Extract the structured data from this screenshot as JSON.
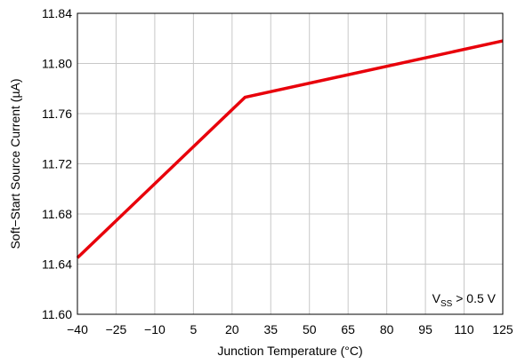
{
  "chart_data": {
    "type": "line",
    "title": "",
    "xlabel": "Junction Temperature (°C)",
    "ylabel": "Soft−Start Source Current (µA)",
    "x_ticks": [
      -40,
      -25,
      -10,
      5,
      20,
      35,
      50,
      65,
      80,
      95,
      110,
      125
    ],
    "x_tick_labels": [
      "−40",
      "−25",
      "−10",
      "5",
      "20",
      "35",
      "50",
      "65",
      "80",
      "95",
      "110",
      "125"
    ],
    "y_ticks": [
      11.6,
      11.64,
      11.68,
      11.72,
      11.76,
      11.8,
      11.84
    ],
    "y_tick_labels": [
      "11.60",
      "11.64",
      "11.68",
      "11.72",
      "11.76",
      "11.80",
      "11.84"
    ],
    "xlim": [
      -40,
      125
    ],
    "ylim": [
      11.6,
      11.84
    ],
    "grid": true,
    "series": [
      {
        "color": "#e8000b",
        "x": [
          -40,
          25,
          125
        ],
        "y": [
          11.645,
          11.773,
          11.818
        ]
      }
    ],
    "annotations": [
      {
        "main": "V",
        "subscript": "SS",
        "suffix": " > 0.5 V",
        "position": "bottom-right"
      }
    ]
  }
}
